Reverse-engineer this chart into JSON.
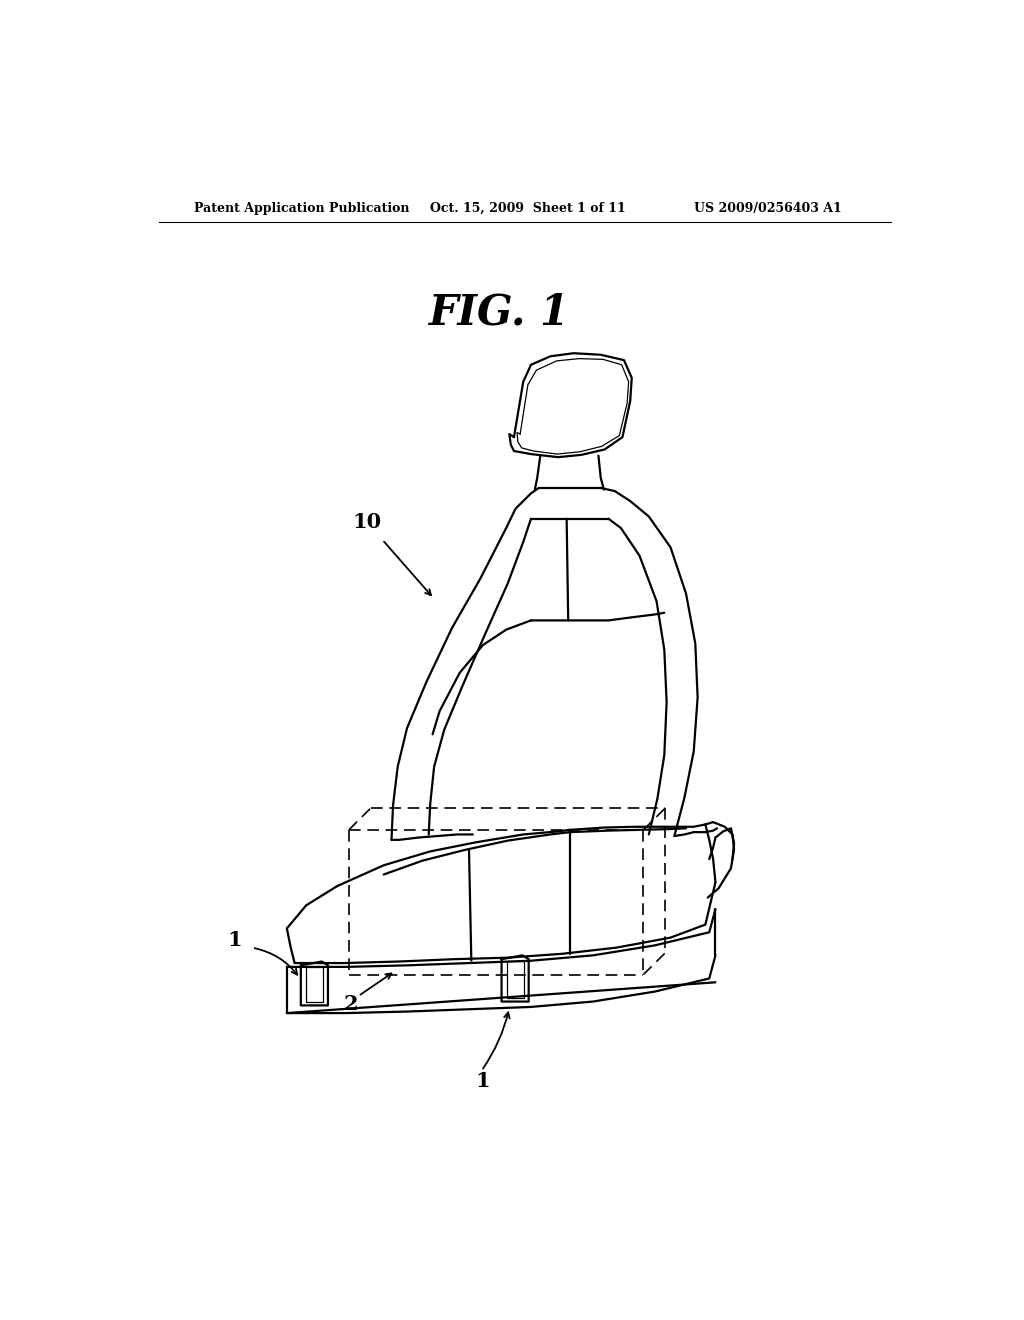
{
  "background_color": "#ffffff",
  "header_left": "Patent Application Publication",
  "header_center": "Oct. 15, 2009  Sheet 1 of 11",
  "header_right": "US 2009/0256403 A1",
  "figure_title": "FIG. 1",
  "label_10": "10",
  "label_1a": "1",
  "label_1b": "1",
  "label_2": "2",
  "line_color": "#000000",
  "text_color": "#000000",
  "lw_main": 1.6,
  "lw_inner": 0.9,
  "header_fontsize": 9,
  "title_fontsize": 30,
  "label_fontsize": 14
}
